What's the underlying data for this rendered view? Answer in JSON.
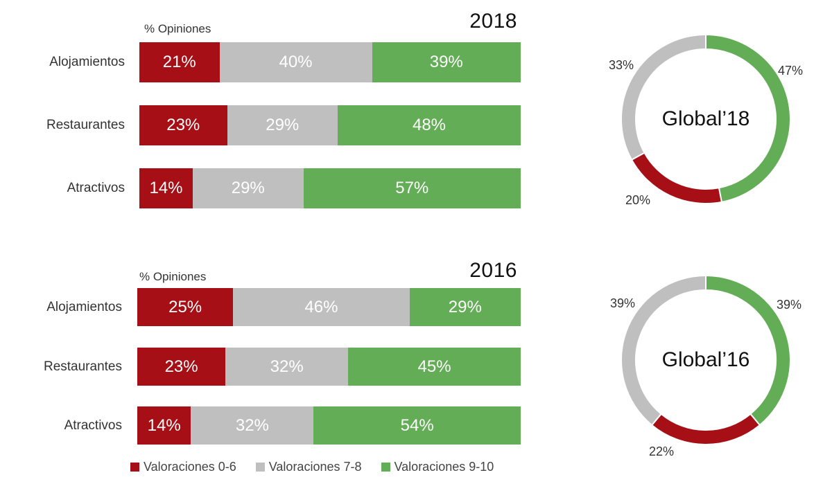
{
  "chart_data": [
    {
      "type": "bar",
      "orientation": "horizontal",
      "stacked": "percent",
      "title": "2018",
      "ylabel": "% Opiniones",
      "categories": [
        "Alojamientos",
        "Restaurantes",
        "Atractivos"
      ],
      "series": [
        {
          "name": "Valoraciones 0-6",
          "values": [
            21,
            23,
            14
          ],
          "labels": [
            "21%",
            "23%",
            "14%"
          ]
        },
        {
          "name": "Valoraciones 7-8",
          "values": [
            40,
            29,
            29
          ],
          "labels": [
            "40%",
            "29%",
            "29%"
          ]
        },
        {
          "name": "Valoraciones 9-10",
          "values": [
            39,
            48,
            57
          ],
          "labels": [
            "39%",
            "48%",
            "57%"
          ]
        }
      ]
    },
    {
      "type": "bar",
      "orientation": "horizontal",
      "stacked": "percent",
      "title": "2016",
      "ylabel": "% Opiniones",
      "categories": [
        "Alojamientos",
        "Restaurantes",
        "Atractivos"
      ],
      "series": [
        {
          "name": "Valoraciones 0-6",
          "values": [
            25,
            23,
            14
          ],
          "labels": [
            "25%",
            "23%",
            "14%"
          ]
        },
        {
          "name": "Valoraciones 7-8",
          "values": [
            46,
            32,
            32
          ],
          "labels": [
            "46%",
            "32%",
            "32%"
          ]
        },
        {
          "name": "Valoraciones 9-10",
          "values": [
            29,
            45,
            54
          ],
          "labels": [
            "29%",
            "45%",
            "54%"
          ]
        }
      ]
    },
    {
      "type": "pie",
      "style": "donut",
      "center_label": "Global’18",
      "slices": [
        {
          "name": "Valoraciones 9-10",
          "value": 47,
          "label": "47%"
        },
        {
          "name": "Valoraciones 0-6",
          "value": 20,
          "label": "20%"
        },
        {
          "name": "Valoraciones 7-8",
          "value": 33,
          "label": "33%"
        }
      ]
    },
    {
      "type": "pie",
      "style": "donut",
      "center_label": "Global’16",
      "slices": [
        {
          "name": "Valoraciones 9-10",
          "value": 39,
          "label": "39%"
        },
        {
          "name": "Valoraciones 0-6",
          "value": 22,
          "label": "22%"
        },
        {
          "name": "Valoraciones 7-8",
          "value": 39,
          "label": "39%"
        }
      ]
    }
  ],
  "legend": {
    "position": "bottom",
    "items": [
      {
        "label": "Valoraciones 0-6",
        "color": "#a50f15"
      },
      {
        "label": "Valoraciones 7-8",
        "color": "#bfbfbf"
      },
      {
        "label": "Valoraciones 9-10",
        "color": "#63ad56"
      }
    ]
  },
  "colors": {
    "low": "#a50f15",
    "mid": "#bfbfbf",
    "high": "#63ad56"
  }
}
